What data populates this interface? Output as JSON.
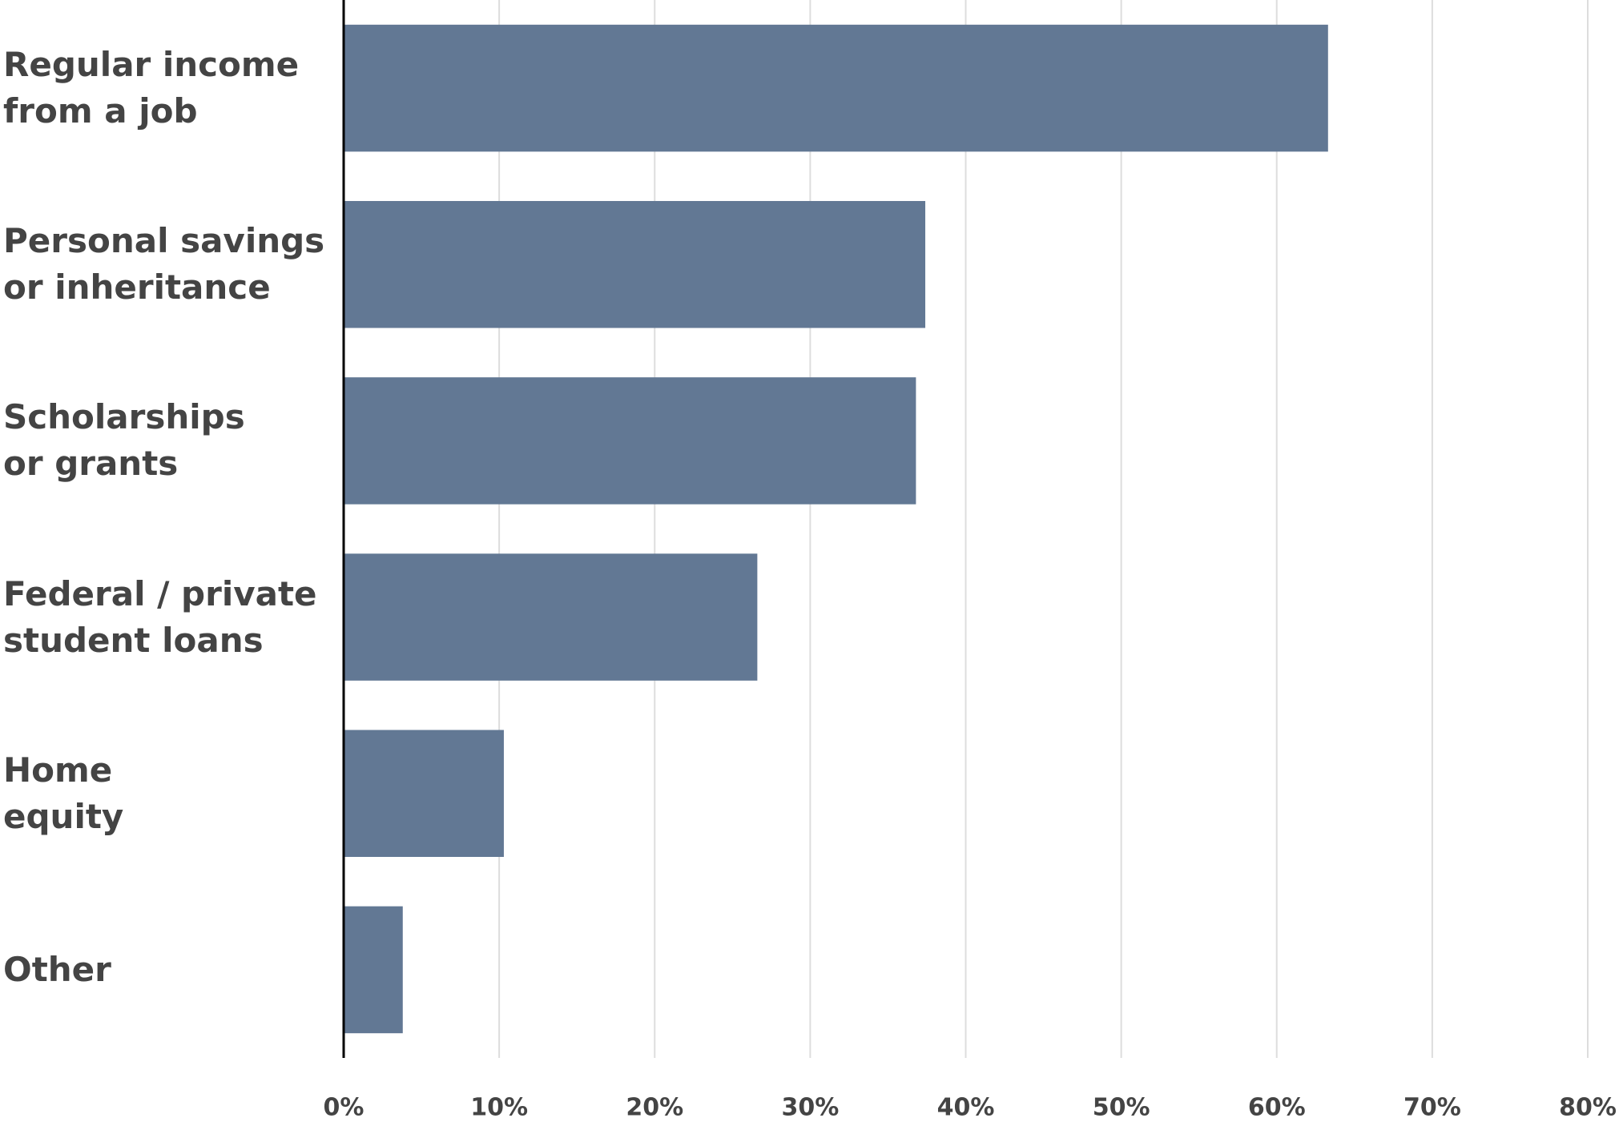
{
  "chart_data": {
    "type": "bar",
    "orientation": "horizontal",
    "categories": [
      "Regular income\nfrom a job",
      "Personal savings\nor inheritance",
      "Scholarships\nor grants",
      "Federal / private\nstudent loans",
      "Home\nequity",
      "Other"
    ],
    "values": [
      63.3,
      37.4,
      36.8,
      26.6,
      10.3,
      3.8
    ],
    "color": "#627894",
    "xlim": [
      0,
      80
    ],
    "xticks": [
      {
        "value": 0,
        "label": "0%"
      },
      {
        "value": 10,
        "label": "10%"
      },
      {
        "value": 20,
        "label": "20%"
      },
      {
        "value": 30,
        "label": "30%"
      },
      {
        "value": 40,
        "label": "40%"
      },
      {
        "value": 50,
        "label": "50%"
      },
      {
        "value": 60,
        "label": "60%"
      },
      {
        "value": 70,
        "label": "70%"
      },
      {
        "value": 80,
        "label": "80%"
      }
    ],
    "grid": true
  }
}
